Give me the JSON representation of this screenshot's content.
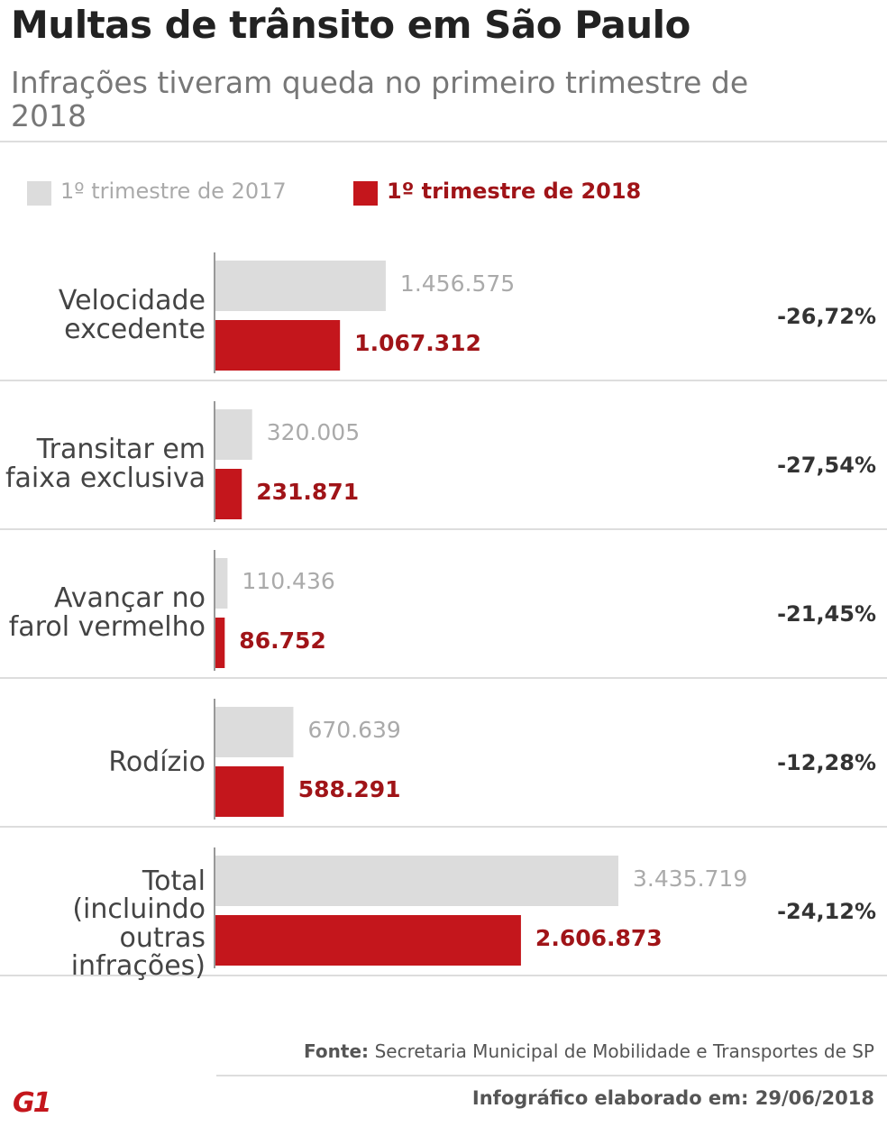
{
  "title": "Multas de trânsito em São Paulo",
  "subtitle": "Infrações tiveram queda no primeiro trimestre de 2018",
  "chart_data": {
    "type": "bar",
    "orientation": "horizontal",
    "categories": [
      "Velocidade\nexcedente",
      "Transitar em\nfaixa exclusiva",
      "Avançar no\nfarol vermelho",
      "Rodízio",
      "Total\n(incluindo outras\ninfrações)"
    ],
    "series": [
      {
        "name": "1º trimestre de 2017",
        "color": "#dcdcdc",
        "label_color": "#aaaaaa",
        "values": [
          1456575,
          320005,
          110436,
          670639,
          3435719
        ],
        "value_labels": [
          "1.456.575",
          "320.005",
          "110.436",
          "670.639",
          "3.435.719"
        ]
      },
      {
        "name": "1º trimestre de 2018",
        "color": "#c4161c",
        "label_color": "#a01418",
        "values": [
          1067312,
          231871,
          86752,
          588291,
          2606873
        ],
        "value_labels": [
          "1.067.312",
          "231.871",
          "86.752",
          "588.291",
          "2.606.873"
        ]
      }
    ],
    "change": {
      "values": [
        -26.72,
        -27.54,
        -21.45,
        -12.28,
        -24.12
      ],
      "value_labels": [
        "-26,72%",
        "-27,54%",
        "-21,45%",
        "-12,28%",
        "-24,12%"
      ]
    }
  },
  "source_label": "Fonte:",
  "source": "Secretaria Municipal de Mobilidade e Transportes de SP",
  "credit": "Infográfico elaborado em: 29/06/2018",
  "logo": "G1"
}
